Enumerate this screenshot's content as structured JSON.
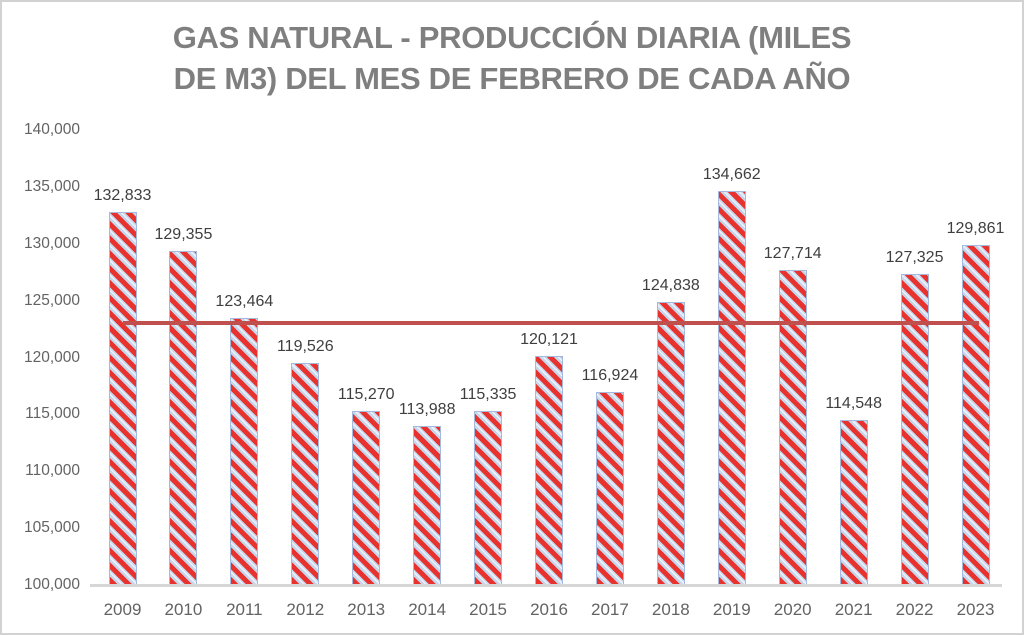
{
  "chart_data": {
    "type": "bar",
    "title": "GAS NATURAL - PRODUCCIÓN DIARIA (MILES DE M3) DEL MES DE FEBRERO DE CADA AÑO",
    "title_lines": [
      "GAS NATURAL - PRODUCCIÓN DIARIA (MILES",
      "DE M3) DEL MES DE FEBRERO DE CADA AÑO"
    ],
    "categories": [
      "2009",
      "2010",
      "2011",
      "2012",
      "2013",
      "2014",
      "2015",
      "2016",
      "2017",
      "2018",
      "2019",
      "2020",
      "2021",
      "2022",
      "2023"
    ],
    "values": [
      132833,
      129355,
      123464,
      119526,
      115270,
      113988,
      115335,
      120121,
      116924,
      124838,
      134662,
      127714,
      114548,
      127325,
      129861
    ],
    "data_labels": [
      "132,833",
      "129,355",
      "123,464",
      "119,526",
      "115,270",
      "113,988",
      "115,335",
      "120,121",
      "116,924",
      "124,838",
      "134,662",
      "127,714",
      "114,548",
      "127,325",
      "129,861"
    ],
    "xlabel": "",
    "ylabel": "",
    "ylim": [
      100000,
      140000
    ],
    "y_tick_step": 5000,
    "y_tick_labels": [
      "140,000",
      "135,000",
      "130,000",
      "125,000",
      "120,000",
      "115,000",
      "110,000",
      "105,000",
      "100,000"
    ],
    "grid": false,
    "legend": false,
    "reference_line": {
      "description": "horizontal line at series average, spanning from first to last bar center",
      "value": 123051,
      "color": "#c0504d"
    },
    "colors": {
      "bar_stripe": "#e8322e",
      "bar_background": "#c7d5eb",
      "bar_background_light": "#edf2fa",
      "bar_border": "#a6b9dc",
      "title_text": "#7f7f7f",
      "axis_text": "#636363",
      "data_label_text": "#3f3f3f",
      "axis_line": "#d6d6d6"
    }
  }
}
